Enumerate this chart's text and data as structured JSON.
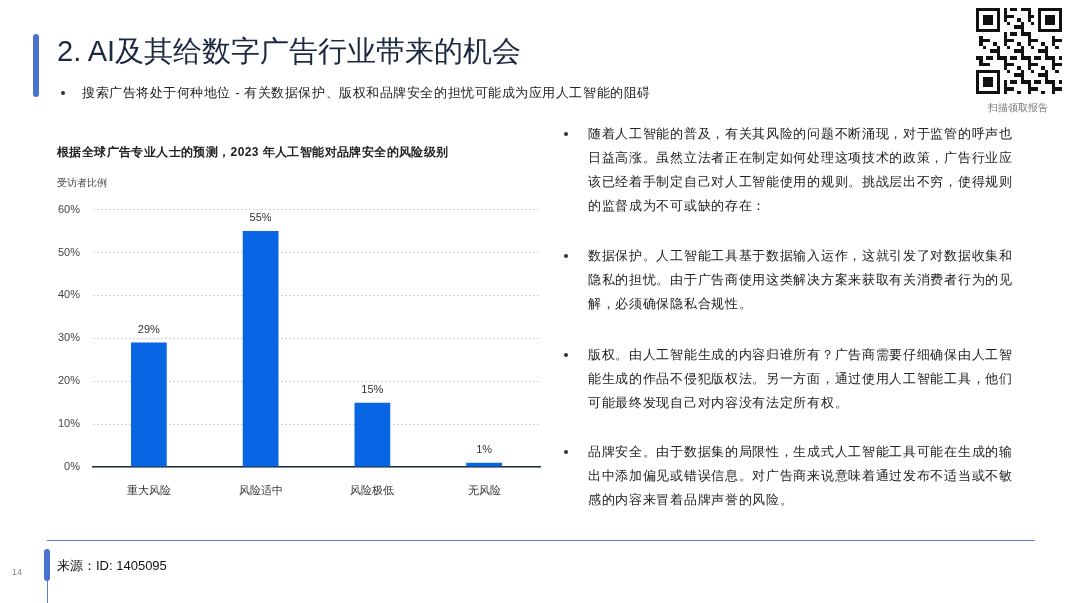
{
  "chart_data": {
    "type": "bar",
    "title": "根据全球广告专业人士的预测，2023 年人工智能对品牌安全的风险级别",
    "ylabel": "受访者比例",
    "categories": [
      "重大风险",
      "风险适中",
      "风险极低",
      "无风险"
    ],
    "values": [
      29,
      55,
      15,
      1
    ],
    "color": "#0866e4",
    "value_labels": [
      "29%",
      "55%",
      "15%",
      "1%"
    ],
    "ylim": [
      0,
      60
    ],
    "yticks": [
      {
        "value": 0,
        "label": "0%"
      },
      {
        "value": 10,
        "label": "10%"
      },
      {
        "value": 20,
        "label": "20%"
      },
      {
        "value": 30,
        "label": "30%"
      },
      {
        "value": 40,
        "label": "40%"
      },
      {
        "value": 50,
        "label": "50%"
      },
      {
        "value": 60,
        "label": "60%"
      }
    ],
    "grid": "y",
    "annotations": [
      "2. AI及其给数字广告行业带来的机会",
      "搜索广告将处于何种地位 - 有关数据保护、版权和品牌安全的担忧可能成为应用人工智能的阻碍",
      "随着人工智能的普及，有关其风险的问题不断涌现，对于监管的呼声也日益高涨。虽然立法者正在制定如何处理这项技术的政策，广告行业应该已经着手制定自己对人工智能使用的规则。挑战层出不穷，使得规则的监督成为不可或缺的存在：",
      "数据保护。人工智能工具基于数据输入运作，这就引发了对数据收集和隐私的担忧。由于广告商使用这类解决方案来获取有关消费者行为的见解，必须确保隐私合规性。",
      "版权。由人工智能生成的内容归谁所有？广告商需要仔细确保由人工智能生成的作品不侵犯版权法。另一方面，通过使用人工智能工具，他们可能最终发现自己对内容没有法定所有权。",
      "品牌安全。由于数据集的局限性，生成式人工智能工具可能在生成的输出中添加偏见或错误信息。对广告商来说意味着通过发布不适当或不敏感的内容来冒着品牌声誉的风险。",
      "来源：ID: 1405095",
      "扫描领取报告",
      "14"
    ]
  }
}
